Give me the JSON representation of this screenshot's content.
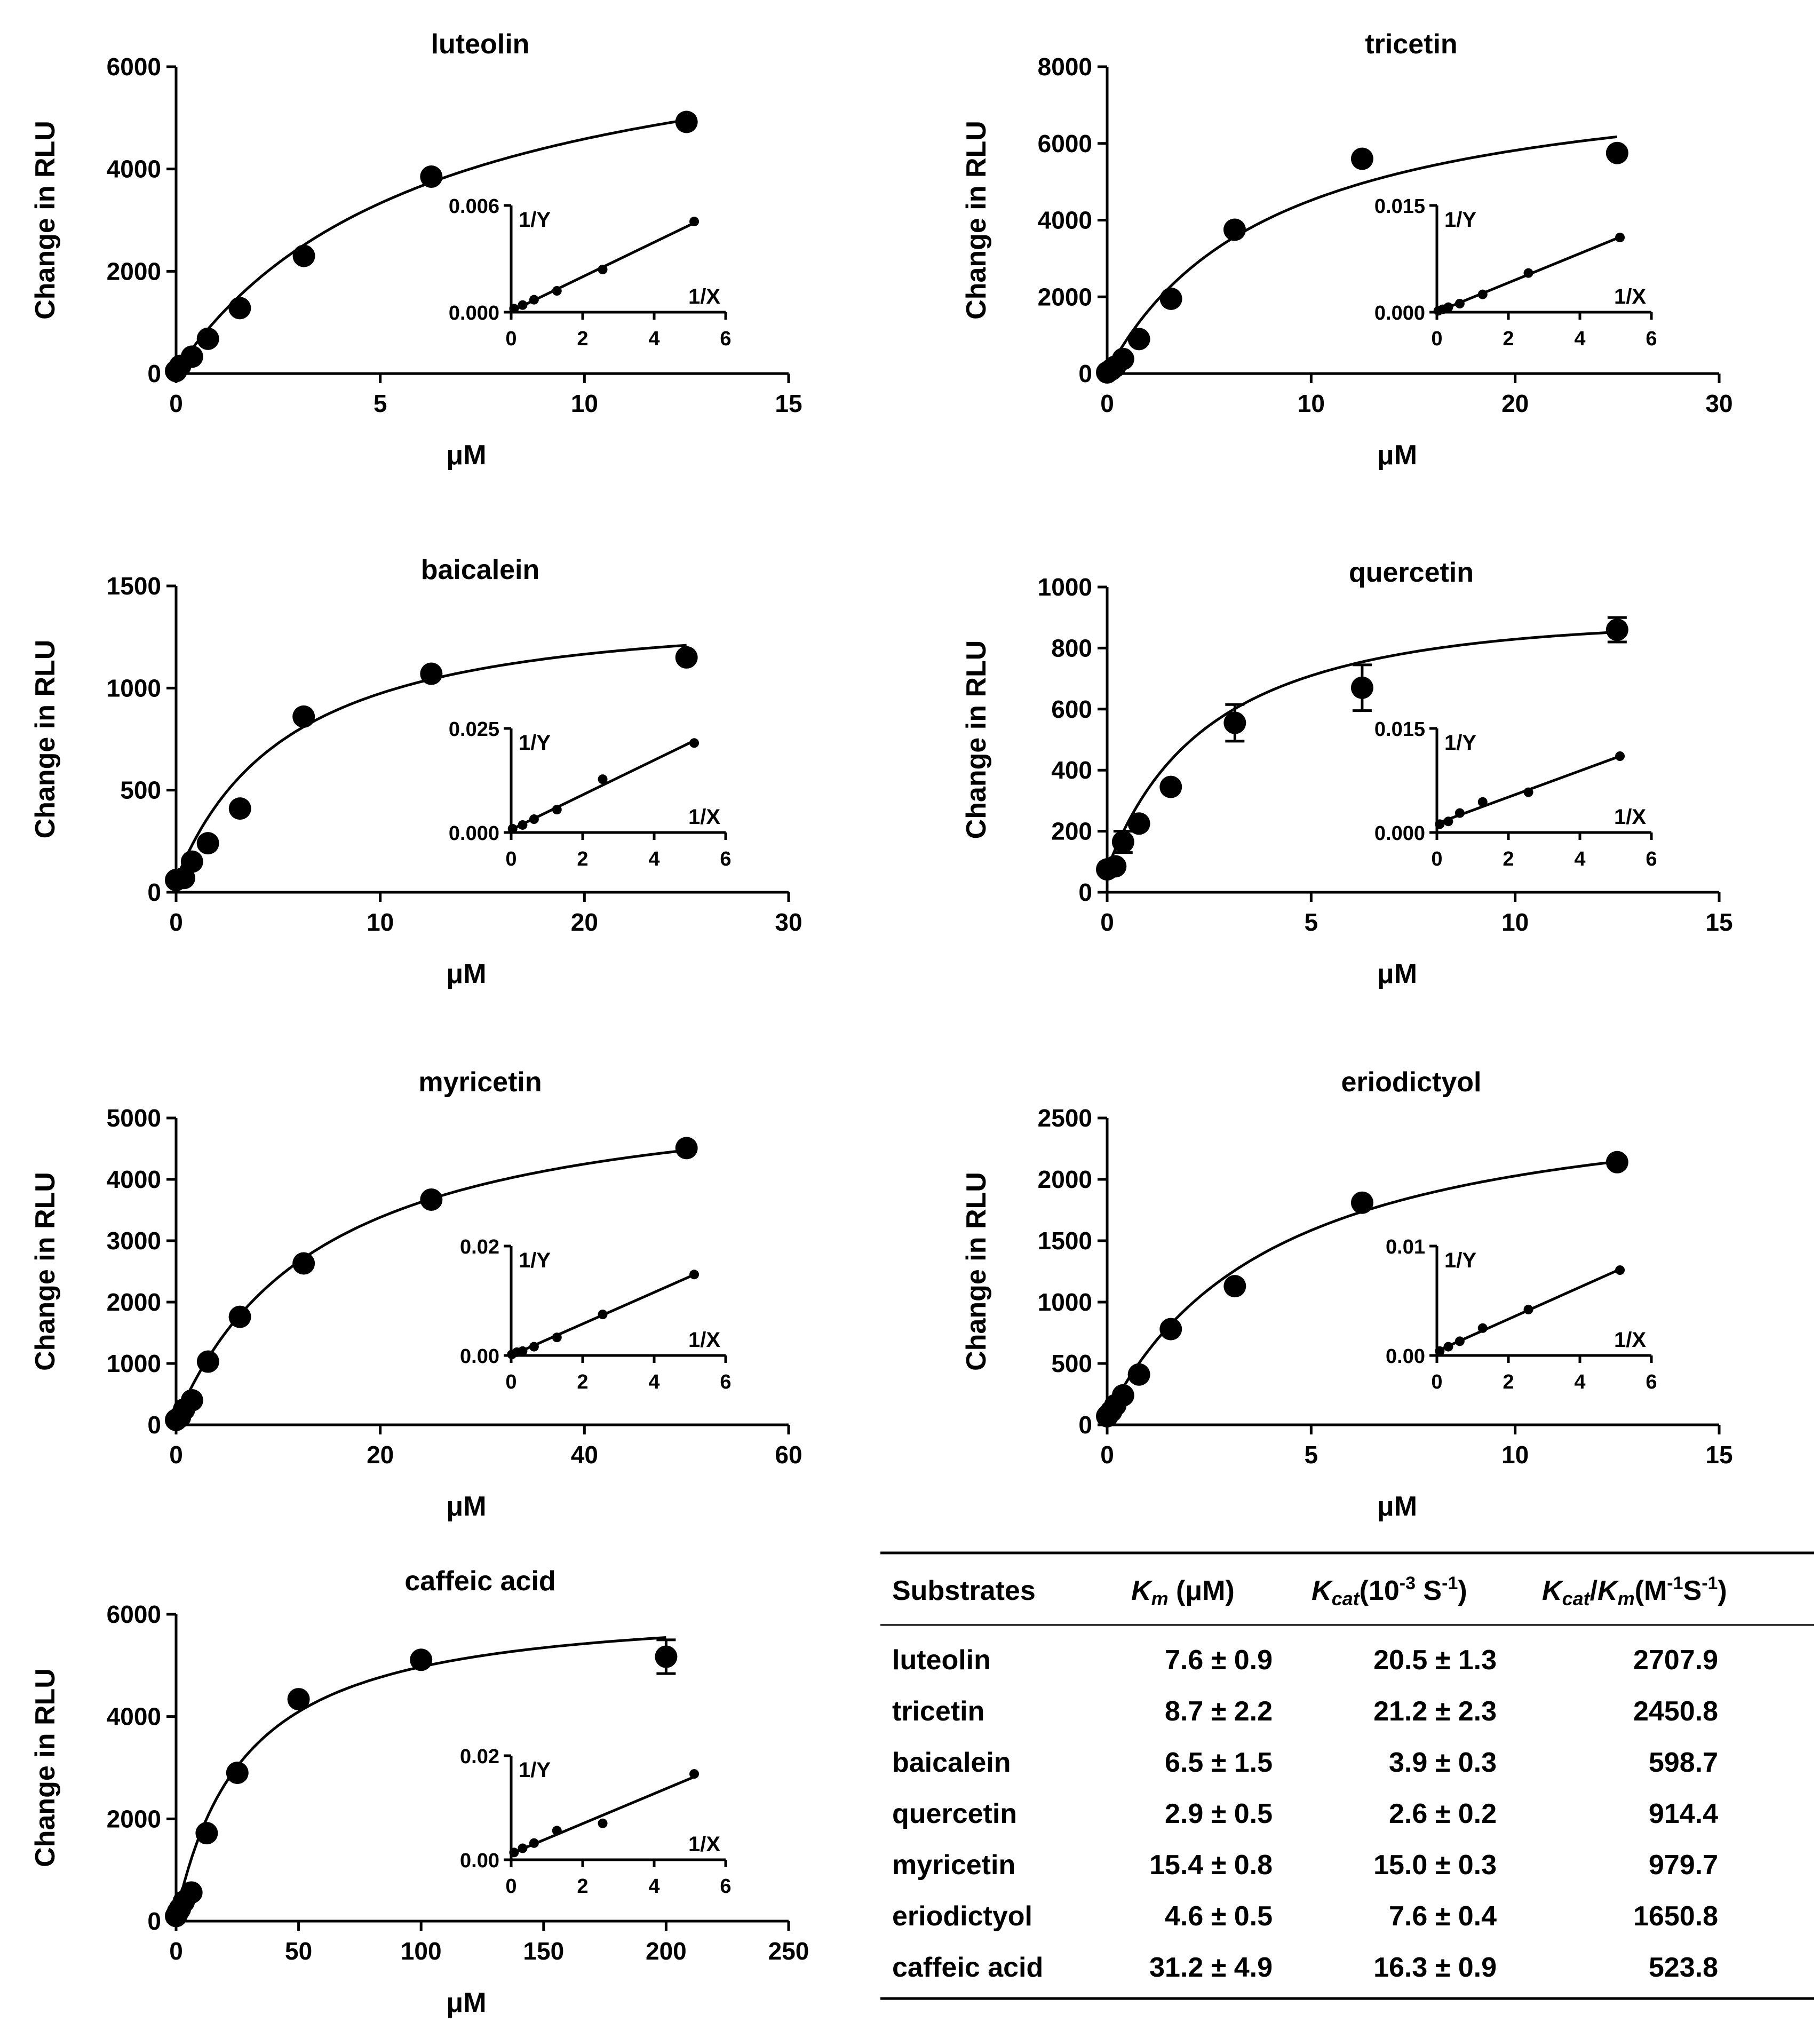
{
  "chart_data": [
    {
      "type": "scatter",
      "title": "luteolin",
      "xlabel": "μM",
      "ylabel": "Change in RLU",
      "xlim": [
        0,
        15
      ],
      "ylim": [
        0,
        6000
      ],
      "xticks": [
        "0",
        "5",
        "10",
        "15"
      ],
      "yticks": [
        "0",
        "2000",
        "4000",
        "6000"
      ],
      "x": [
        0,
        0.1,
        0.39,
        0.78,
        1.56,
        3.13,
        6.25,
        12.5
      ],
      "y": [
        50,
        150,
        330,
        680,
        1280,
        2300,
        3850,
        4920
      ],
      "fit": {
        "vmax": 7460,
        "km": 6.3
      },
      "inset": {
        "ylabel": "1/Y",
        "xlabel": "1/X",
        "ylim": [
          0,
          0.006
        ],
        "xlim": [
          0,
          6
        ],
        "yticks": [
          "0.000",
          "0.006"
        ],
        "xticks": [
          "0",
          "2",
          "4",
          "6"
        ],
        "x": [
          0.08,
          0.32,
          0.64,
          1.28,
          2.56,
          5.12
        ],
        "y": [
          0.0002,
          0.0004,
          0.0007,
          0.0012,
          0.0024,
          0.0051
        ]
      }
    },
    {
      "type": "scatter",
      "title": "tricetin",
      "xlabel": "μM",
      "ylabel": "Change in RLU",
      "xlim": [
        0,
        30
      ],
      "ylim": [
        0,
        8000
      ],
      "xticks": [
        "0",
        "10",
        "20",
        "30"
      ],
      "yticks": [
        "0",
        "2000",
        "4000",
        "6000",
        "8000"
      ],
      "x": [
        0,
        0.2,
        0.39,
        0.78,
        1.56,
        3.13,
        6.25,
        12.5,
        25
      ],
      "y": [
        30,
        100,
        180,
        380,
        900,
        1950,
        3750,
        5600,
        5750
      ],
      "fit": {
        "vmax": 8210,
        "km": 8.25
      },
      "inset": {
        "ylabel": "1/Y",
        "xlabel": "1/X",
        "ylim": [
          0,
          0.015
        ],
        "xlim": [
          0,
          6
        ],
        "yticks": [
          "0.000",
          "0.015"
        ],
        "xticks": [
          "0",
          "2",
          "4",
          "6"
        ],
        "x": [
          0.04,
          0.16,
          0.32,
          0.64,
          1.28,
          2.56,
          5.12
        ],
        "y": [
          0.0002,
          0.0004,
          0.0007,
          0.0012,
          0.0025,
          0.0055,
          0.0105
        ]
      }
    },
    {
      "type": "scatter",
      "title": "baicalein",
      "xlabel": "μM",
      "ylabel": "Change in RLU",
      "xlim": [
        0,
        30
      ],
      "ylim": [
        0,
        1500
      ],
      "xticks": [
        "0",
        "10",
        "20",
        "30"
      ],
      "yticks": [
        "0",
        "500",
        "1000",
        "1500"
      ],
      "x": [
        0,
        0.39,
        0.78,
        1.56,
        3.13,
        6.25,
        12.5,
        25
      ],
      "y": [
        60,
        70,
        150,
        240,
        410,
        860,
        1070,
        1150
      ],
      "fit": {
        "vmax": 1500,
        "km": 6.0
      },
      "inset": {
        "ylabel": "1/Y",
        "xlabel": "1/X",
        "ylim": [
          0,
          0.025
        ],
        "xlim": [
          0,
          6
        ],
        "yticks": [
          "0.000",
          "0.025"
        ],
        "xticks": [
          "0",
          "2",
          "4",
          "6"
        ],
        "x": [
          0.04,
          0.32,
          0.64,
          1.28,
          2.56,
          5.12
        ],
        "y": [
          0.0009,
          0.0018,
          0.0032,
          0.0055,
          0.0128,
          0.0215
        ]
      }
    },
    {
      "type": "scatter",
      "title": "quercetin",
      "xlabel": "μM",
      "ylabel": "Change in RLU",
      "xlim": [
        0,
        15
      ],
      "ylim": [
        0,
        1000
      ],
      "xticks": [
        "0",
        "5",
        "10",
        "15"
      ],
      "yticks": [
        "0",
        "200",
        "400",
        "600",
        "800",
        "1000"
      ],
      "x": [
        0,
        0.2,
        0.39,
        0.78,
        1.56,
        3.13,
        6.25,
        12.5
      ],
      "y": [
        75,
        85,
        165,
        225,
        345,
        555,
        670,
        860
      ],
      "yerr": [
        15,
        10,
        35,
        15,
        15,
        60,
        75,
        40
      ],
      "fit": {
        "vmax": 1050,
        "km": 2.9
      },
      "inset": {
        "ylabel": "1/Y",
        "xlabel": "1/X",
        "ylim": [
          0,
          0.015
        ],
        "xlim": [
          0,
          6
        ],
        "yticks": [
          "0.000",
          "0.015"
        ],
        "xticks": [
          "0",
          "2",
          "4",
          "6"
        ],
        "x": [
          0.08,
          0.32,
          0.64,
          1.28,
          2.56,
          5.12
        ],
        "y": [
          0.0012,
          0.0016,
          0.0028,
          0.0044,
          0.0058,
          0.011
        ]
      }
    },
    {
      "type": "scatter",
      "title": "myricetin",
      "xlabel": "μM",
      "ylabel": "Change in RLU",
      "xlim": [
        0,
        60
      ],
      "ylim": [
        0,
        5000
      ],
      "xticks": [
        "0",
        "20",
        "40",
        "60"
      ],
      "yticks": [
        "0",
        "1000",
        "2000",
        "3000",
        "4000",
        "5000"
      ],
      "x": [
        0,
        0.39,
        0.78,
        1.56,
        3.13,
        6.25,
        12.5,
        25,
        50
      ],
      "y": [
        80,
        130,
        250,
        400,
        1030,
        1760,
        2630,
        3670,
        4510
      ],
      "fit": {
        "vmax": 5800,
        "km": 14.8
      },
      "inset": {
        "ylabel": "1/Y",
        "xlabel": "1/X",
        "ylim": [
          0,
          0.02
        ],
        "xlim": [
          0,
          6
        ],
        "yticks": [
          "0.00",
          "0.02"
        ],
        "xticks": [
          "0",
          "2",
          "4",
          "6"
        ],
        "x": [
          0.02,
          0.16,
          0.32,
          0.64,
          1.28,
          2.56,
          5.12
        ],
        "y": [
          0.0002,
          0.0006,
          0.0008,
          0.0016,
          0.0033,
          0.0075,
          0.0148
        ]
      }
    },
    {
      "type": "scatter",
      "title": "eriodictyol",
      "xlabel": "μM",
      "ylabel": "Change in RLU",
      "xlim": [
        0,
        15
      ],
      "ylim": [
        0,
        2500
      ],
      "xticks": [
        "0",
        "5",
        "10",
        "15"
      ],
      "yticks": [
        "0",
        "500",
        "1000",
        "1500",
        "2000",
        "2500"
      ],
      "x": [
        0,
        0.1,
        0.2,
        0.39,
        0.78,
        1.56,
        3.13,
        6.25,
        12.5
      ],
      "y": [
        70,
        110,
        160,
        240,
        410,
        780,
        1130,
        1810,
        2140
      ],
      "fit": {
        "vmax": 2900,
        "km": 4.4
      },
      "inset": {
        "ylabel": "1/Y",
        "xlabel": "1/X",
        "ylim": [
          0,
          0.01
        ],
        "xlim": [
          0,
          6
        ],
        "yticks": [
          "0.00",
          "0.01"
        ],
        "xticks": [
          "0",
          "2",
          "4",
          "6"
        ],
        "x": [
          0.08,
          0.32,
          0.64,
          1.28,
          2.56,
          5.12
        ],
        "y": [
          0.0004,
          0.0008,
          0.0013,
          0.0025,
          0.0042,
          0.0078
        ]
      }
    },
    {
      "type": "scatter",
      "title": "caffeic acid",
      "xlabel": "μM",
      "ylabel": "Change in RLU",
      "xlim": [
        0,
        250
      ],
      "ylim": [
        0,
        6000
      ],
      "xticks": [
        "0",
        "50",
        "100",
        "150",
        "200",
        "250"
      ],
      "yticks": [
        "0",
        "2000",
        "4000",
        "6000"
      ],
      "x": [
        0,
        0.78,
        1.56,
        3.13,
        6.25,
        12.5,
        25,
        50,
        100,
        200
      ],
      "y": [
        100,
        180,
        240,
        380,
        560,
        1720,
        2900,
        4340,
        5110,
        5170
      ],
      "yerr": [
        0,
        0,
        0,
        0,
        0,
        0,
        0,
        0,
        0,
        330
      ],
      "fit": {
        "vmax": 6350,
        "km": 29
      },
      "inset": {
        "ylabel": "1/Y",
        "xlabel": "1/X",
        "ylim": [
          0,
          0.02
        ],
        "xlim": [
          0,
          6
        ],
        "yticks": [
          "0.00",
          "0.02"
        ],
        "xticks": [
          "0",
          "2",
          "4",
          "6"
        ],
        "x": [
          0.08,
          0.32,
          0.64,
          1.28,
          2.56,
          5.12
        ],
        "y": [
          0.0014,
          0.0022,
          0.0032,
          0.0056,
          0.007,
          0.0165
        ]
      }
    },
    {
      "type": "table",
      "headers": [
        "Substrates",
        "K_m (μM)",
        "K_cat (10^-3 S^-1)",
        "K_cat/K_m (M^-1 S^-1)"
      ],
      "rows": [
        [
          "luteolin",
          "7.6 ± 0.9",
          "20.5 ± 1.3",
          "2707.9"
        ],
        [
          "tricetin",
          "8.7 ± 2.2",
          "21.2 ± 2.3",
          "2450.8"
        ],
        [
          "baicalein",
          "6.5 ± 1.5",
          "3.9 ± 0.3",
          "598.7"
        ],
        [
          "quercetin",
          "2.9 ± 0.5",
          "2.6 ± 0.2",
          "914.4"
        ],
        [
          "myricetin",
          "15.4 ± 0.8",
          "15.0 ± 0.3",
          "979.7"
        ],
        [
          "eriodictyol",
          "4.6 ± 0.5",
          "7.6 ± 0.4",
          "1650.8"
        ],
        [
          "caffeic acid",
          "31.2 ± 4.9",
          "16.3 ± 0.9",
          "523.8"
        ]
      ]
    }
  ],
  "table_header": {
    "substrates": "Substrates",
    "km_sym": "K",
    "km_sub": "m",
    "km_unit": " (μM)",
    "kcat_sym": "K",
    "kcat_sub": "cat",
    "kcat_unit_pre": "(10",
    "kcat_exp": "-3",
    "kcat_unit_mid": " S",
    "kcat_exp2": "-1",
    "kcat_unit_post": ")",
    "ratio_sym1": "K",
    "ratio_sub1": "cat",
    "ratio_slash": "/",
    "ratio_sym2": "K",
    "ratio_sub2": "m",
    "ratio_unit_pre": "(M",
    "ratio_exp1": "-1",
    "ratio_unit_mid": "S",
    "ratio_exp2": "-1",
    "ratio_unit_post": ")"
  }
}
